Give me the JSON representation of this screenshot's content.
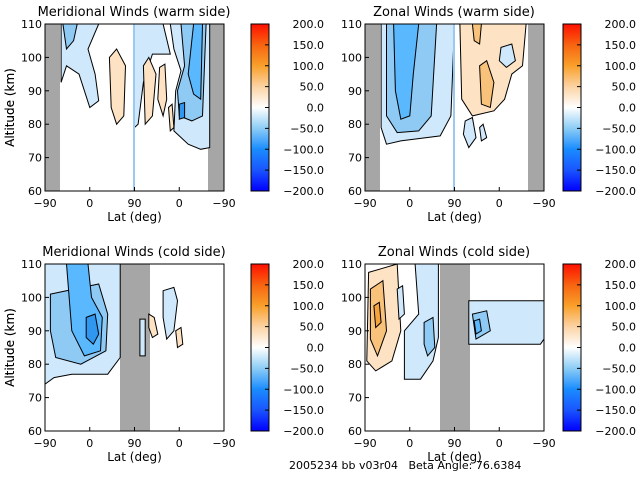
{
  "footer": {
    "text": "2005234 bb v03r04   Beta Angle: 76.6384"
  },
  "colors": {
    "gap_gray": "#a6a6a6",
    "colormap": [
      "#0000ff",
      "#1a73ff",
      "#5ab8ff",
      "#cfe8fb",
      "#ffffff",
      "#fde3c3",
      "#f9b35a",
      "#f77a16",
      "#ff1a00"
    ]
  },
  "chart_data": [
    {
      "type": "heatmap",
      "title": "Meridional Winds (warm side)",
      "xlabel": "Lat (deg)",
      "ylabel": "Altitude (km)",
      "xticklabels": [
        "-90",
        "0",
        "90",
        "0",
        "-90"
      ],
      "yticks": [
        60,
        70,
        80,
        90,
        100,
        110
      ],
      "ylim": [
        60,
        110
      ],
      "colorbar": {
        "ticks": [
          "200.0",
          "150.0",
          "100.0",
          "50.0",
          "0.0",
          "-50.0",
          "-100.0",
          "-150.0",
          "-200.0"
        ],
        "range": [
          -200,
          200
        ]
      },
      "no_data_regions": [
        {
          "x_from": -90,
          "x_to": -65
        },
        {
          "x_from": -65,
          "x_to": -90,
          "side": "descending"
        }
      ],
      "features": [
        {
          "kind": "negative",
          "level": -25,
          "region": "ascending -65..-20, 90-110 km",
          "note": "light blue band at top-left"
        },
        {
          "kind": "positive",
          "level": 25,
          "region": "ascending ~45-70, 82-105 km"
        },
        {
          "kind": "negative",
          "level": -100,
          "region": "descending ~0..-60, 73-110 km",
          "note": "strongest blue core ~85 km near 0"
        },
        {
          "kind": "positive",
          "level": 25,
          "region": "descending ~60-10, 78-100 km, scattered"
        }
      ]
    },
    {
      "type": "heatmap",
      "title": "Zonal Winds (warm side)",
      "xlabel": "Lat (deg)",
      "ylabel": "Altitude (km)",
      "xticklabels": [
        "-90",
        "0",
        "90",
        "0",
        "-90"
      ],
      "yticks": [
        60,
        70,
        80,
        90,
        100,
        110
      ],
      "ylim": [
        60,
        110
      ],
      "colorbar": {
        "ticks": [
          "200.0",
          "150.0",
          "100.0",
          "50.0",
          "0.0",
          "-50.0",
          "-100.0",
          "-150.0",
          "-200.0"
        ],
        "range": [
          -200,
          200
        ]
      },
      "features": [
        {
          "kind": "negative",
          "level": -100,
          "region": "ascending -65..50, 73-110 km",
          "note": "blue jet core near -30..0, 82-110 km"
        },
        {
          "kind": "positive",
          "level": 50,
          "region": "90..-60 descending, 83-110 km",
          "note": "light orange field with orange patches"
        },
        {
          "kind": "negative",
          "level": -25,
          "region": "descending ~60..30, 72-82 km small cells"
        }
      ]
    },
    {
      "type": "heatmap",
      "title": "Meridional Winds (cold side)",
      "xlabel": "Lat (deg)",
      "ylabel": "Altitude (km)",
      "xticklabels": [
        "-90",
        "0",
        "90",
        "0",
        "-90"
      ],
      "yticks": [
        60,
        70,
        80,
        90,
        100,
        110
      ],
      "ylim": [
        60,
        110
      ],
      "colorbar": {
        "ticks": [
          "200.0",
          "150.0",
          "100.0",
          "50.0",
          "0.0",
          "-50.0",
          "-100.0",
          "-150.0",
          "-200.0"
        ],
        "range": [
          -200,
          200
        ]
      },
      "features": [
        {
          "kind": "negative",
          "level": -125,
          "region": "ascending -90..60, 75-110 km",
          "note": "strong blue core ~0 lat, 85-92 km"
        },
        {
          "kind": "positive",
          "level": 25,
          "region": "descending small cells ~80-90 km"
        },
        {
          "kind": "negative",
          "level": -25,
          "region": "descending ~40 lat, 87-102 km"
        }
      ]
    },
    {
      "type": "heatmap",
      "title": "Zonal Winds (cold side)",
      "xlabel": "Lat (deg)",
      "ylabel": "Altitude (km)",
      "xticklabels": [
        "-90",
        "0",
        "90",
        "0",
        "-90"
      ],
      "yticks": [
        60,
        70,
        80,
        90,
        100,
        110
      ],
      "ylim": [
        60,
        110
      ],
      "colorbar": {
        "ticks": [
          "200.0",
          "150.0",
          "100.0",
          "50.0",
          "0.0",
          "-50.0",
          "-100.0",
          "-150.0",
          "-200.0"
        ],
        "range": [
          -200,
          200
        ]
      },
      "features": [
        {
          "kind": "positive",
          "level": 75,
          "region": "ascending -90..-50, 80-110 km",
          "note": "orange core near -75, 95 km"
        },
        {
          "kind": "negative",
          "level": -75,
          "region": "ascending -30..60, 75-110 km"
        },
        {
          "kind": "negative",
          "level": -50,
          "region": "descending 130..-90, 83-102 km",
          "note": "blue core near 120, 90 km"
        }
      ]
    }
  ]
}
